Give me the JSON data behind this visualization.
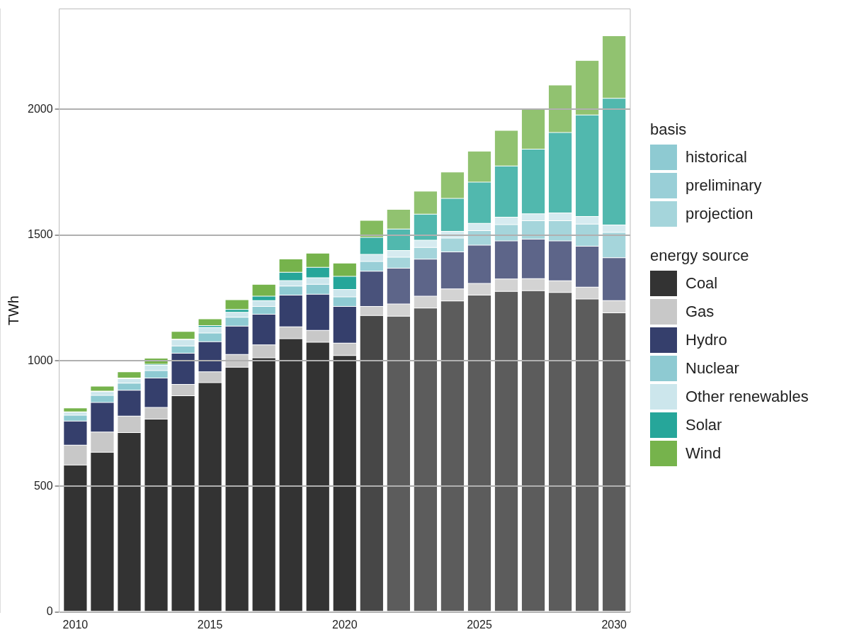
{
  "chart_data": {
    "type": "bar",
    "stacked": true,
    "ylabel": "TWh",
    "legend": "right",
    "legend_title": "basis",
    "annotations": [
      "energy source"
    ],
    "grid": "y",
    "x": [
      2010,
      2011,
      2012,
      2013,
      2014,
      2015,
      2016,
      2017,
      2018,
      2019,
      2020,
      2021,
      2022,
      2023,
      2024,
      2025,
      2026,
      2027,
      2028,
      2029,
      2030
    ],
    "xlim": [
      2009.4,
      2030.6
    ],
    "xticks": [
      2010,
      2015,
      2020,
      2025,
      2030
    ],
    "ylim": [
      0,
      2400
    ],
    "yticks": [
      0,
      500,
      1000,
      1500,
      2000
    ],
    "series": [
      {
        "name": "historical",
        "color": "#8ecad2",
        "values": [
          null,
          null,
          null,
          null,
          null,
          null,
          null,
          null,
          null,
          null,
          null,
          null,
          null,
          null,
          null,
          null,
          null,
          null,
          null,
          null,
          null
        ]
      },
      {
        "name": "preliminary",
        "color": "#99cfd7",
        "values": [
          null,
          null,
          null,
          null,
          null,
          null,
          null,
          null,
          null,
          null,
          null,
          null,
          null,
          null,
          null,
          null,
          null,
          null,
          null,
          null,
          null
        ]
      },
      {
        "name": "projection",
        "color": "#a5d5db",
        "values": [
          null,
          null,
          null,
          null,
          null,
          null,
          null,
          null,
          null,
          null,
          null,
          null,
          null,
          null,
          null,
          null,
          null,
          null,
          null,
          null,
          null
        ]
      },
      {
        "name": "Coal",
        "color": "#333333",
        "colors": [
          "#333333",
          "#333333",
          "#333333",
          "#333333",
          "#333333",
          "#333333",
          "#333333",
          "#333333",
          "#333333",
          "#333333",
          "#333333",
          "#474747",
          "#5c5c5c",
          "#5c5c5c",
          "#5c5c5c",
          "#5c5c5c",
          "#5c5c5c",
          "#5c5c5c",
          "#5c5c5c",
          "#5c5c5c",
          "#5c5c5c"
        ],
        "values": [
          585,
          636,
          714,
          768,
          861,
          913,
          974,
          1012,
          1088,
          1074,
          1021,
          1180,
          1177,
          1210,
          1238,
          1261,
          1276,
          1279,
          1272,
          1246,
          1191
        ]
      },
      {
        "name": "Gas",
        "color": "#c8c8c8",
        "colors": [
          "#c8c8c8",
          "#c8c8c8",
          "#c8c8c8",
          "#c8c8c8",
          "#c8c8c8",
          "#c8c8c8",
          "#c8c8c8",
          "#c8c8c8",
          "#c8c8c8",
          "#c8c8c8",
          "#c8c8c8",
          "#cecece",
          "#d3d3d3",
          "#d3d3d3",
          "#d3d3d3",
          "#d3d3d3",
          "#d3d3d3",
          "#d3d3d3",
          "#d3d3d3",
          "#d3d3d3",
          "#d3d3d3"
        ],
        "values": [
          79,
          80,
          66,
          46,
          45,
          43,
          51,
          51,
          47,
          47,
          49,
          36,
          49,
          47,
          48,
          47,
          49,
          48,
          46,
          47,
          48
        ]
      },
      {
        "name": "Hydro",
        "color": "#353f6c",
        "colors": [
          "#353f6c",
          "#353f6c",
          "#353f6c",
          "#353f6c",
          "#353f6c",
          "#353f6c",
          "#353f6c",
          "#353f6c",
          "#353f6c",
          "#353f6c",
          "#353f6c",
          "#49527b",
          "#5d6589",
          "#5d6589",
          "#5d6589",
          "#5d6589",
          "#5d6589",
          "#5d6589",
          "#5d6589",
          "#5d6589",
          "#5d6589"
        ],
        "values": [
          96,
          118,
          103,
          117,
          124,
          120,
          113,
          122,
          126,
          144,
          146,
          140,
          142,
          147,
          147,
          152,
          152,
          157,
          159,
          163,
          171
        ]
      },
      {
        "name": "Nuclear",
        "color": "#8ecad2",
        "colors": [
          "#8ecad2",
          "#8ecad2",
          "#8ecad2",
          "#8ecad2",
          "#8ecad2",
          "#8ecad2",
          "#8ecad2",
          "#8ecad2",
          "#8ecad2",
          "#8ecad2",
          "#8ecad2",
          "#99cfd7",
          "#a5d5db",
          "#a5d5db",
          "#a5d5db",
          "#a5d5db",
          "#a5d5db",
          "#a5d5db",
          "#a5d5db",
          "#a5d5db",
          "#a5d5db"
        ],
        "values": [
          23,
          28,
          28,
          30,
          29,
          34,
          35,
          31,
          36,
          39,
          38,
          39,
          44,
          47,
          55,
          58,
          65,
          73,
          80,
          88,
          101
        ]
      },
      {
        "name": "Other renewables",
        "color": "#cce6ec",
        "colors": [
          "#cce6ec",
          "#cce6ec",
          "#cce6ec",
          "#cce6ec",
          "#cce6ec",
          "#cce6ec",
          "#cce6ec",
          "#cce6ec",
          "#cce6ec",
          "#cce6ec",
          "#cce6ec",
          "#d1e8ee",
          "#d6ebf0",
          "#d6ebf0",
          "#d6ebf0",
          "#d6ebf0",
          "#d6ebf0",
          "#d6ebf0",
          "#d6ebf0",
          "#d6ebf0",
          "#d6ebf0"
        ],
        "values": [
          12,
          15,
          18,
          21,
          25,
          23,
          20,
          23,
          22,
          26,
          30,
          28,
          27,
          29,
          27,
          29,
          29,
          28,
          31,
          30,
          29
        ]
      },
      {
        "name": "Solar",
        "color": "#26a69a",
        "colors": [
          "#26a69a",
          "#26a69a",
          "#26a69a",
          "#26a69a",
          "#26a69a",
          "#26a69a",
          "#26a69a",
          "#26a69a",
          "#26a69a",
          "#26a69a",
          "#26a69a",
          "#3cafa4",
          "#51b8ae",
          "#51b8ae",
          "#51b8ae",
          "#51b8ae",
          "#51b8ae",
          "#51b8ae",
          "#51b8ae",
          "#51b8ae",
          "#51b8ae"
        ],
        "values": [
          2,
          2,
          2,
          4,
          2,
          7,
          11,
          18,
          33,
          42,
          52,
          68,
          85,
          103,
          131,
          164,
          204,
          257,
          320,
          404,
          504
        ]
      },
      {
        "name": "Wind",
        "color": "#76b34c",
        "colors": [
          "#76b34c",
          "#76b34c",
          "#76b34c",
          "#76b34c",
          "#76b34c",
          "#76b34c",
          "#76b34c",
          "#76b34c",
          "#76b34c",
          "#76b34c",
          "#76b34c",
          "#84bb5e",
          "#91c270",
          "#91c270",
          "#91c270",
          "#91c270",
          "#91c270",
          "#91c270",
          "#91c270",
          "#91c270",
          "#91c270"
        ],
        "values": [
          15,
          20,
          25,
          24,
          31,
          27,
          39,
          47,
          53,
          56,
          53,
          68,
          78,
          92,
          105,
          123,
          142,
          163,
          189,
          217,
          249
        ]
      }
    ]
  }
}
